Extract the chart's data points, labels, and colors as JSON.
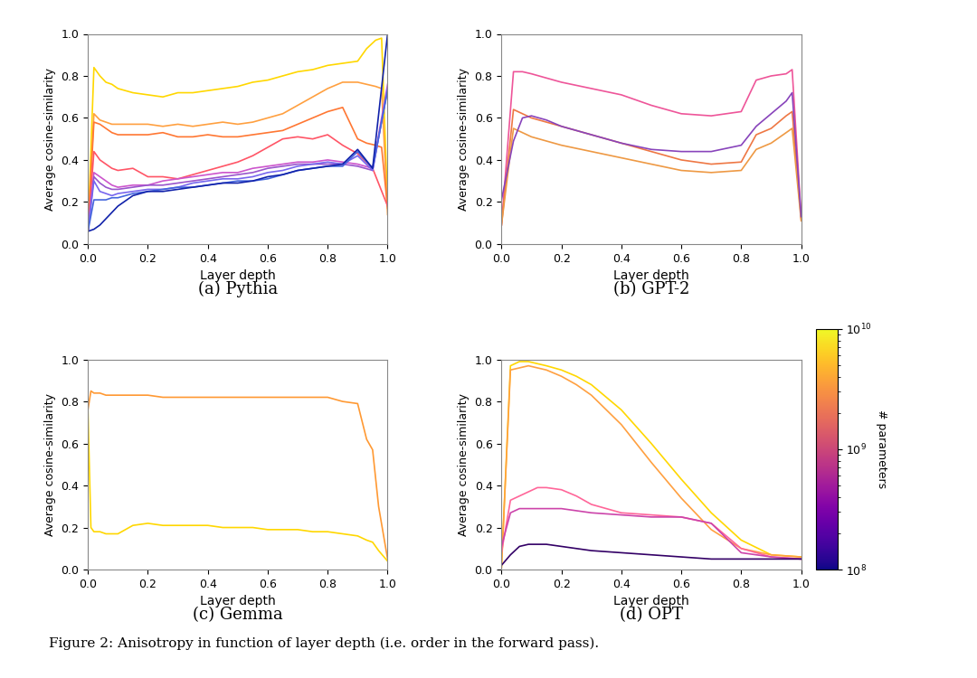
{
  "title_caption": "Figure 2: Anisotropy in function of layer depth (i.e. order in the forward pass).",
  "subplot_labels": [
    "(a) Pythia",
    "(b) GPT-2",
    "(c) Gemma",
    "(d) OPT"
  ],
  "ylabel": "Average cosine-similarity",
  "xlabel": "Layer depth",
  "colorbar_label": "# parameters",
  "pythia": {
    "curves": [
      {
        "color": "#FFD700",
        "x": [
          0.0,
          0.02,
          0.04,
          0.06,
          0.08,
          0.1,
          0.15,
          0.2,
          0.25,
          0.3,
          0.35,
          0.4,
          0.45,
          0.5,
          0.55,
          0.6,
          0.65,
          0.7,
          0.75,
          0.8,
          0.85,
          0.9,
          0.93,
          0.96,
          0.98,
          1.0
        ],
        "y": [
          0.06,
          0.84,
          0.8,
          0.77,
          0.76,
          0.74,
          0.72,
          0.71,
          0.7,
          0.72,
          0.72,
          0.73,
          0.74,
          0.75,
          0.77,
          0.78,
          0.8,
          0.82,
          0.83,
          0.85,
          0.86,
          0.87,
          0.93,
          0.97,
          0.98,
          0.19
        ]
      },
      {
        "color": "#FFA040",
        "x": [
          0.0,
          0.02,
          0.04,
          0.06,
          0.08,
          0.1,
          0.15,
          0.2,
          0.25,
          0.3,
          0.35,
          0.4,
          0.45,
          0.5,
          0.55,
          0.6,
          0.65,
          0.7,
          0.75,
          0.8,
          0.85,
          0.9,
          0.93,
          0.96,
          0.98,
          1.0
        ],
        "y": [
          0.06,
          0.62,
          0.59,
          0.58,
          0.57,
          0.57,
          0.57,
          0.57,
          0.56,
          0.57,
          0.56,
          0.57,
          0.58,
          0.57,
          0.58,
          0.6,
          0.62,
          0.66,
          0.7,
          0.74,
          0.77,
          0.77,
          0.76,
          0.75,
          0.74,
          0.14
        ]
      },
      {
        "color": "#FF7733",
        "x": [
          0.0,
          0.02,
          0.04,
          0.06,
          0.08,
          0.1,
          0.15,
          0.2,
          0.25,
          0.3,
          0.35,
          0.4,
          0.45,
          0.5,
          0.55,
          0.6,
          0.65,
          0.7,
          0.75,
          0.8,
          0.85,
          0.9,
          0.93,
          0.96,
          0.98,
          1.0
        ],
        "y": [
          0.06,
          0.58,
          0.57,
          0.55,
          0.53,
          0.52,
          0.52,
          0.52,
          0.53,
          0.51,
          0.51,
          0.52,
          0.51,
          0.51,
          0.52,
          0.53,
          0.54,
          0.57,
          0.6,
          0.63,
          0.65,
          0.5,
          0.48,
          0.47,
          0.46,
          0.17
        ]
      },
      {
        "color": "#FF5566",
        "x": [
          0.0,
          0.02,
          0.04,
          0.06,
          0.08,
          0.1,
          0.15,
          0.2,
          0.25,
          0.3,
          0.35,
          0.4,
          0.45,
          0.5,
          0.55,
          0.6,
          0.65,
          0.7,
          0.75,
          0.8,
          0.85,
          0.9,
          0.95,
          1.0
        ],
        "y": [
          0.06,
          0.44,
          0.4,
          0.38,
          0.36,
          0.35,
          0.36,
          0.32,
          0.32,
          0.31,
          0.33,
          0.35,
          0.37,
          0.39,
          0.42,
          0.46,
          0.5,
          0.51,
          0.5,
          0.52,
          0.47,
          0.43,
          0.36,
          0.18
        ]
      },
      {
        "color": "#CC55CC",
        "x": [
          0.0,
          0.02,
          0.04,
          0.06,
          0.08,
          0.1,
          0.15,
          0.2,
          0.25,
          0.3,
          0.35,
          0.4,
          0.45,
          0.5,
          0.55,
          0.6,
          0.65,
          0.7,
          0.75,
          0.8,
          0.85,
          0.9,
          0.95,
          1.0
        ],
        "y": [
          0.06,
          0.34,
          0.32,
          0.3,
          0.28,
          0.27,
          0.28,
          0.28,
          0.3,
          0.31,
          0.32,
          0.33,
          0.34,
          0.34,
          0.36,
          0.37,
          0.38,
          0.39,
          0.39,
          0.4,
          0.39,
          0.38,
          0.36,
          0.76
        ]
      },
      {
        "color": "#9955CC",
        "x": [
          0.0,
          0.02,
          0.04,
          0.06,
          0.08,
          0.1,
          0.15,
          0.2,
          0.25,
          0.3,
          0.35,
          0.4,
          0.45,
          0.5,
          0.55,
          0.6,
          0.65,
          0.7,
          0.75,
          0.8,
          0.85,
          0.9,
          0.95,
          1.0
        ],
        "y": [
          0.06,
          0.32,
          0.29,
          0.27,
          0.26,
          0.26,
          0.27,
          0.28,
          0.28,
          0.29,
          0.3,
          0.31,
          0.32,
          0.33,
          0.34,
          0.36,
          0.37,
          0.38,
          0.38,
          0.38,
          0.38,
          0.37,
          0.35,
          0.74
        ]
      },
      {
        "color": "#7766EE",
        "x": [
          0.0,
          0.02,
          0.04,
          0.06,
          0.08,
          0.1,
          0.15,
          0.2,
          0.25,
          0.3,
          0.35,
          0.4,
          0.45,
          0.5,
          0.55,
          0.6,
          0.65,
          0.7,
          0.75,
          0.8,
          0.85,
          0.9,
          0.95,
          1.0
        ],
        "y": [
          0.06,
          0.3,
          0.25,
          0.24,
          0.23,
          0.24,
          0.25,
          0.26,
          0.26,
          0.27,
          0.29,
          0.3,
          0.31,
          0.31,
          0.32,
          0.34,
          0.35,
          0.37,
          0.38,
          0.39,
          0.38,
          0.42,
          0.35,
          0.74
        ]
      },
      {
        "color": "#4466DD",
        "x": [
          0.0,
          0.02,
          0.04,
          0.06,
          0.08,
          0.1,
          0.15,
          0.2,
          0.25,
          0.3,
          0.35,
          0.4,
          0.45,
          0.5,
          0.55,
          0.6,
          0.65,
          0.7,
          0.75,
          0.8,
          0.85,
          0.9,
          0.95,
          1.0
        ],
        "y": [
          0.06,
          0.21,
          0.21,
          0.21,
          0.22,
          0.22,
          0.24,
          0.25,
          0.26,
          0.27,
          0.27,
          0.28,
          0.29,
          0.3,
          0.3,
          0.31,
          0.33,
          0.35,
          0.36,
          0.37,
          0.37,
          0.44,
          0.36,
          0.73
        ]
      },
      {
        "color": "#1122AA",
        "x": [
          0.0,
          0.02,
          0.04,
          0.06,
          0.08,
          0.1,
          0.15,
          0.2,
          0.25,
          0.3,
          0.35,
          0.4,
          0.45,
          0.5,
          0.55,
          0.6,
          0.65,
          0.7,
          0.75,
          0.8,
          0.85,
          0.9,
          0.95,
          1.0
        ],
        "y": [
          0.06,
          0.07,
          0.09,
          0.12,
          0.15,
          0.18,
          0.23,
          0.25,
          0.25,
          0.26,
          0.27,
          0.28,
          0.29,
          0.29,
          0.3,
          0.32,
          0.33,
          0.35,
          0.36,
          0.37,
          0.38,
          0.45,
          0.36,
          1.0
        ]
      }
    ]
  },
  "gpt2": {
    "curves": [
      {
        "color": "#EE5599",
        "x": [
          0.0,
          0.04,
          0.07,
          0.1,
          0.15,
          0.2,
          0.3,
          0.4,
          0.5,
          0.6,
          0.7,
          0.8,
          0.85,
          0.9,
          0.95,
          0.97,
          1.0
        ],
        "y": [
          0.09,
          0.82,
          0.82,
          0.81,
          0.79,
          0.77,
          0.74,
          0.71,
          0.66,
          0.62,
          0.61,
          0.63,
          0.78,
          0.8,
          0.81,
          0.83,
          0.13
        ]
      },
      {
        "color": "#EE7744",
        "x": [
          0.0,
          0.04,
          0.07,
          0.1,
          0.15,
          0.2,
          0.3,
          0.4,
          0.5,
          0.6,
          0.7,
          0.8,
          0.85,
          0.9,
          0.95,
          0.97,
          1.0
        ],
        "y": [
          0.09,
          0.64,
          0.62,
          0.6,
          0.58,
          0.56,
          0.52,
          0.48,
          0.44,
          0.4,
          0.38,
          0.39,
          0.52,
          0.55,
          0.61,
          0.63,
          0.12
        ]
      },
      {
        "color": "#EE9944",
        "x": [
          0.0,
          0.04,
          0.07,
          0.1,
          0.15,
          0.2,
          0.3,
          0.4,
          0.5,
          0.6,
          0.7,
          0.8,
          0.85,
          0.9,
          0.95,
          0.97,
          1.0
        ],
        "y": [
          0.09,
          0.55,
          0.53,
          0.51,
          0.49,
          0.47,
          0.44,
          0.41,
          0.38,
          0.35,
          0.34,
          0.35,
          0.45,
          0.48,
          0.53,
          0.55,
          0.11
        ]
      },
      {
        "color": "#8844BB",
        "x": [
          0.0,
          0.04,
          0.07,
          0.1,
          0.15,
          0.2,
          0.3,
          0.4,
          0.5,
          0.6,
          0.7,
          0.8,
          0.85,
          0.9,
          0.95,
          0.97,
          1.0
        ],
        "y": [
          0.21,
          0.49,
          0.6,
          0.61,
          0.59,
          0.56,
          0.52,
          0.48,
          0.45,
          0.44,
          0.44,
          0.47,
          0.56,
          0.62,
          0.68,
          0.72,
          0.13
        ]
      }
    ]
  },
  "gemma": {
    "curves": [
      {
        "color": "#FF9933",
        "x": [
          0.0,
          0.01,
          0.02,
          0.04,
          0.06,
          0.08,
          0.1,
          0.15,
          0.2,
          0.25,
          0.3,
          0.35,
          0.4,
          0.45,
          0.5,
          0.55,
          0.6,
          0.65,
          0.7,
          0.75,
          0.8,
          0.85,
          0.9,
          0.93,
          0.95,
          0.97,
          1.0
        ],
        "y": [
          0.76,
          0.85,
          0.84,
          0.84,
          0.83,
          0.83,
          0.83,
          0.83,
          0.83,
          0.82,
          0.82,
          0.82,
          0.82,
          0.82,
          0.82,
          0.82,
          0.82,
          0.82,
          0.82,
          0.82,
          0.82,
          0.8,
          0.79,
          0.62,
          0.57,
          0.3,
          0.05
        ]
      },
      {
        "color": "#FFD700",
        "x": [
          0.0,
          0.01,
          0.02,
          0.04,
          0.06,
          0.08,
          0.1,
          0.15,
          0.2,
          0.25,
          0.3,
          0.35,
          0.4,
          0.45,
          0.5,
          0.55,
          0.6,
          0.65,
          0.7,
          0.75,
          0.8,
          0.85,
          0.9,
          0.93,
          0.95,
          0.97,
          1.0
        ],
        "y": [
          0.76,
          0.2,
          0.18,
          0.18,
          0.17,
          0.17,
          0.17,
          0.21,
          0.22,
          0.21,
          0.21,
          0.21,
          0.21,
          0.2,
          0.2,
          0.2,
          0.19,
          0.19,
          0.19,
          0.18,
          0.18,
          0.17,
          0.16,
          0.14,
          0.13,
          0.09,
          0.04
        ]
      }
    ]
  },
  "opt": {
    "curves": [
      {
        "color": "#FFD700",
        "x": [
          0.0,
          0.03,
          0.06,
          0.09,
          0.12,
          0.15,
          0.2,
          0.25,
          0.3,
          0.4,
          0.5,
          0.6,
          0.7,
          0.8,
          0.9,
          1.0
        ],
        "y": [
          0.01,
          0.97,
          0.99,
          0.99,
          0.98,
          0.97,
          0.95,
          0.92,
          0.88,
          0.76,
          0.6,
          0.43,
          0.27,
          0.14,
          0.07,
          0.06
        ]
      },
      {
        "color": "#FFA040",
        "x": [
          0.0,
          0.03,
          0.06,
          0.09,
          0.12,
          0.15,
          0.2,
          0.25,
          0.3,
          0.4,
          0.5,
          0.6,
          0.7,
          0.8,
          0.9,
          1.0
        ],
        "y": [
          0.01,
          0.95,
          0.96,
          0.97,
          0.96,
          0.95,
          0.92,
          0.88,
          0.83,
          0.69,
          0.51,
          0.34,
          0.19,
          0.1,
          0.07,
          0.06
        ]
      },
      {
        "color": "#FF6699",
        "x": [
          0.0,
          0.03,
          0.06,
          0.09,
          0.12,
          0.15,
          0.2,
          0.25,
          0.3,
          0.4,
          0.5,
          0.6,
          0.7,
          0.8,
          0.9,
          1.0
        ],
        "y": [
          0.08,
          0.33,
          0.35,
          0.37,
          0.39,
          0.39,
          0.38,
          0.35,
          0.31,
          0.27,
          0.26,
          0.25,
          0.22,
          0.1,
          0.06,
          0.05
        ]
      },
      {
        "color": "#CC44AA",
        "x": [
          0.0,
          0.03,
          0.06,
          0.09,
          0.12,
          0.15,
          0.2,
          0.25,
          0.3,
          0.4,
          0.5,
          0.6,
          0.7,
          0.8,
          0.9,
          1.0
        ],
        "y": [
          0.11,
          0.27,
          0.29,
          0.29,
          0.29,
          0.29,
          0.29,
          0.28,
          0.27,
          0.26,
          0.25,
          0.25,
          0.22,
          0.08,
          0.06,
          0.05
        ]
      },
      {
        "color": "#330066",
        "x": [
          0.0,
          0.03,
          0.06,
          0.09,
          0.12,
          0.15,
          0.2,
          0.25,
          0.3,
          0.4,
          0.5,
          0.6,
          0.7,
          0.8,
          0.9,
          1.0
        ],
        "y": [
          0.02,
          0.07,
          0.11,
          0.12,
          0.12,
          0.12,
          0.11,
          0.1,
          0.09,
          0.08,
          0.07,
          0.06,
          0.05,
          0.05,
          0.05,
          0.05
        ]
      }
    ]
  }
}
